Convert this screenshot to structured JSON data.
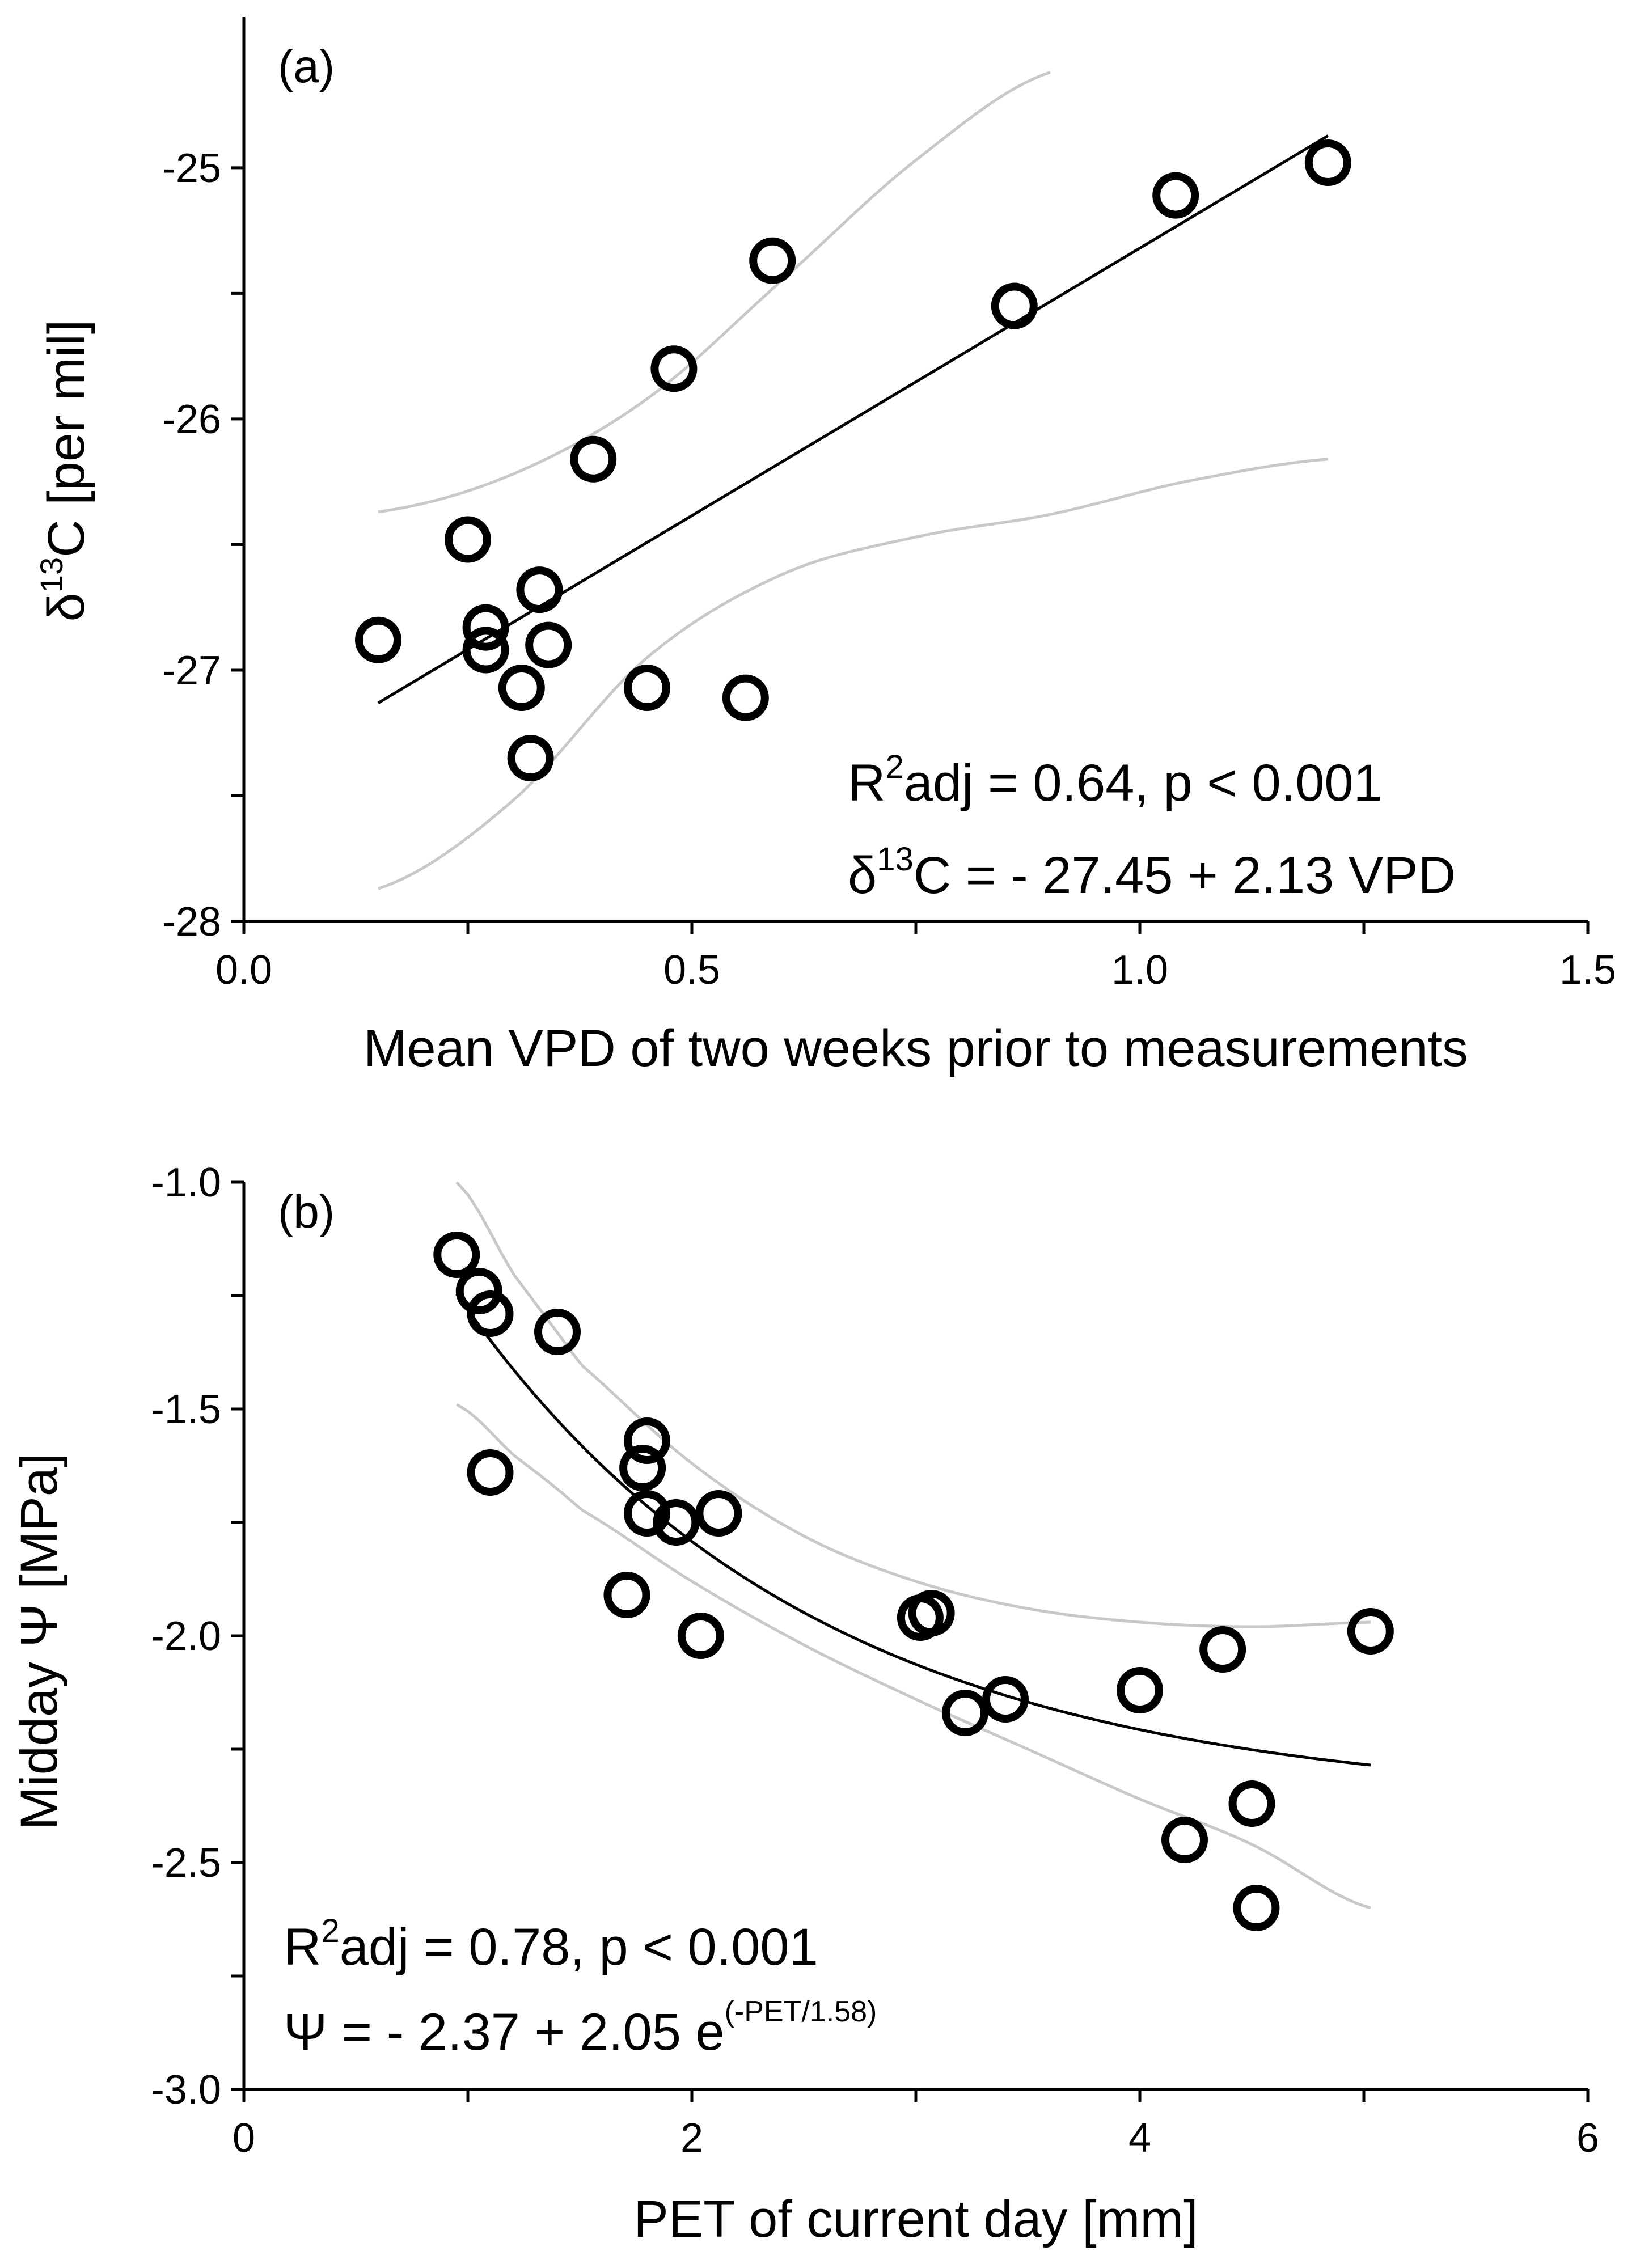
{
  "chart_data": [
    {
      "id": "a",
      "type": "scatter",
      "panel_label": "(a)",
      "xlabel": "Mean VPD of two weeks prior to measurements",
      "ylabel_prefix": "δ",
      "ylabel_sup": "13",
      "ylabel_rest": "C [per mil]",
      "xlim": [
        0,
        1.5
      ],
      "ylim": [
        -28,
        -24.4
      ],
      "xticks": [
        0,
        0.25,
        0.5,
        0.75,
        1.0,
        1.25,
        1.5
      ],
      "xtick_labels": [
        "0.0",
        "",
        "0.5",
        "",
        "1.0",
        "",
        "1.5"
      ],
      "yticks": [
        -28,
        -27.5,
        -27,
        -26.5,
        -26,
        -25.5,
        -25
      ],
      "ytick_labels": [
        "-28",
        "",
        "-27",
        "",
        "-26",
        "",
        "-25"
      ],
      "points": [
        {
          "x": 0.15,
          "y": -26.88
        },
        {
          "x": 0.25,
          "y": -26.48
        },
        {
          "x": 0.27,
          "y": -26.83
        },
        {
          "x": 0.27,
          "y": -26.92
        },
        {
          "x": 0.31,
          "y": -27.07
        },
        {
          "x": 0.32,
          "y": -27.35
        },
        {
          "x": 0.33,
          "y": -26.68
        },
        {
          "x": 0.34,
          "y": -26.9
        },
        {
          "x": 0.39,
          "y": -26.16
        },
        {
          "x": 0.45,
          "y": -27.07
        },
        {
          "x": 0.48,
          "y": -25.8
        },
        {
          "x": 0.56,
          "y": -27.11
        },
        {
          "x": 0.59,
          "y": -25.37
        },
        {
          "x": 0.86,
          "y": -25.55
        },
        {
          "x": 1.04,
          "y": -25.11
        },
        {
          "x": 1.21,
          "y": -24.98
        }
      ],
      "fit": {
        "model": "linear",
        "intercept": -27.45,
        "slope": 2.13,
        "x_range": [
          0.15,
          1.21
        ]
      },
      "band_upper": [
        [
          0.15,
          -26.37
        ],
        [
          0.3,
          -26.22
        ],
        [
          0.45,
          -25.92
        ],
        [
          0.6,
          -25.45
        ],
        [
          0.75,
          -24.97
        ],
        [
          0.9,
          -24.62
        ]
      ],
      "band_lower": [
        [
          0.15,
          -27.87
        ],
        [
          0.3,
          -27.52
        ],
        [
          0.45,
          -26.95
        ],
        [
          0.6,
          -26.62
        ],
        [
          0.75,
          -26.47
        ],
        [
          0.9,
          -26.38
        ],
        [
          1.05,
          -26.25
        ],
        [
          1.21,
          -26.16
        ]
      ],
      "annotation_line1": {
        "prefix": "R",
        "sup": "2",
        "rest": "adj = 0.64, p < 0.001"
      },
      "annotation_line2": {
        "prefix": "δ",
        "sup": "13",
        "rest": "C = - 27.45 + 2.13 VPD"
      }
    },
    {
      "id": "b",
      "type": "scatter",
      "panel_label": "(b)",
      "xlabel": "PET of current day [mm]",
      "ylabel": "Midday Ψ [MPa]",
      "xlim": [
        0,
        6
      ],
      "ylim": [
        -3.0,
        -1.0
      ],
      "xticks": [
        0,
        1,
        2,
        3,
        4,
        5,
        6
      ],
      "xtick_labels": [
        "0",
        "",
        "2",
        "",
        "4",
        "",
        "6"
      ],
      "yticks": [
        -3.0,
        -2.75,
        -2.5,
        -2.25,
        -2.0,
        -1.75,
        -1.5,
        -1.25,
        -1.0
      ],
      "ytick_labels": [
        "-3.0",
        "",
        "-2.5",
        "",
        "-2.0",
        "",
        "-1.5",
        "",
        "-1.0"
      ],
      "points": [
        {
          "x": 0.95,
          "y": -1.16
        },
        {
          "x": 1.05,
          "y": -1.24
        },
        {
          "x": 1.1,
          "y": -1.29
        },
        {
          "x": 1.4,
          "y": -1.33
        },
        {
          "x": 1.1,
          "y": -1.64
        },
        {
          "x": 1.8,
          "y": -1.57
        },
        {
          "x": 1.78,
          "y": -1.63
        },
        {
          "x": 1.8,
          "y": -1.73
        },
        {
          "x": 1.93,
          "y": -1.75
        },
        {
          "x": 2.12,
          "y": -1.73
        },
        {
          "x": 1.71,
          "y": -1.91
        },
        {
          "x": 2.04,
          "y": -2.0
        },
        {
          "x": 3.02,
          "y": -1.96
        },
        {
          "x": 3.07,
          "y": -1.95
        },
        {
          "x": 3.22,
          "y": -2.17
        },
        {
          "x": 3.4,
          "y": -2.14
        },
        {
          "x": 4.0,
          "y": -2.12
        },
        {
          "x": 4.37,
          "y": -2.03
        },
        {
          "x": 5.03,
          "y": -1.99
        },
        {
          "x": 4.2,
          "y": -2.45
        },
        {
          "x": 4.5,
          "y": -2.37
        },
        {
          "x": 4.52,
          "y": -2.6
        }
      ],
      "fit": {
        "model": "exponential",
        "a": -2.37,
        "b": 2.05,
        "c": 1.58,
        "x_range": [
          0.95,
          5.03
        ]
      },
      "band_upper": [
        [
          0.95,
          -1.0
        ],
        [
          1.2,
          -1.2
        ],
        [
          1.5,
          -1.4
        ],
        [
          2.0,
          -1.62
        ],
        [
          2.5,
          -1.78
        ],
        [
          3.0,
          -1.88
        ],
        [
          3.5,
          -1.94
        ],
        [
          4.0,
          -1.97
        ],
        [
          4.5,
          -1.98
        ],
        [
          5.03,
          -1.97
        ]
      ],
      "band_lower": [
        [
          0.95,
          -1.49
        ],
        [
          1.2,
          -1.6
        ],
        [
          1.5,
          -1.72
        ],
        [
          2.0,
          -1.88
        ],
        [
          2.5,
          -2.02
        ],
        [
          3.0,
          -2.14
        ],
        [
          3.5,
          -2.25
        ],
        [
          4.0,
          -2.36
        ],
        [
          4.5,
          -2.46
        ],
        [
          5.03,
          -2.6
        ]
      ],
      "annotation_line1": {
        "prefix": "R",
        "sup": "2",
        "rest": "adj = 0.78, p < 0.001"
      },
      "annotation_line2": {
        "prefix": "Ψ = - 2.37 + 2.05 e",
        "sup": "(-PET/1.58)",
        "rest": ""
      }
    }
  ]
}
